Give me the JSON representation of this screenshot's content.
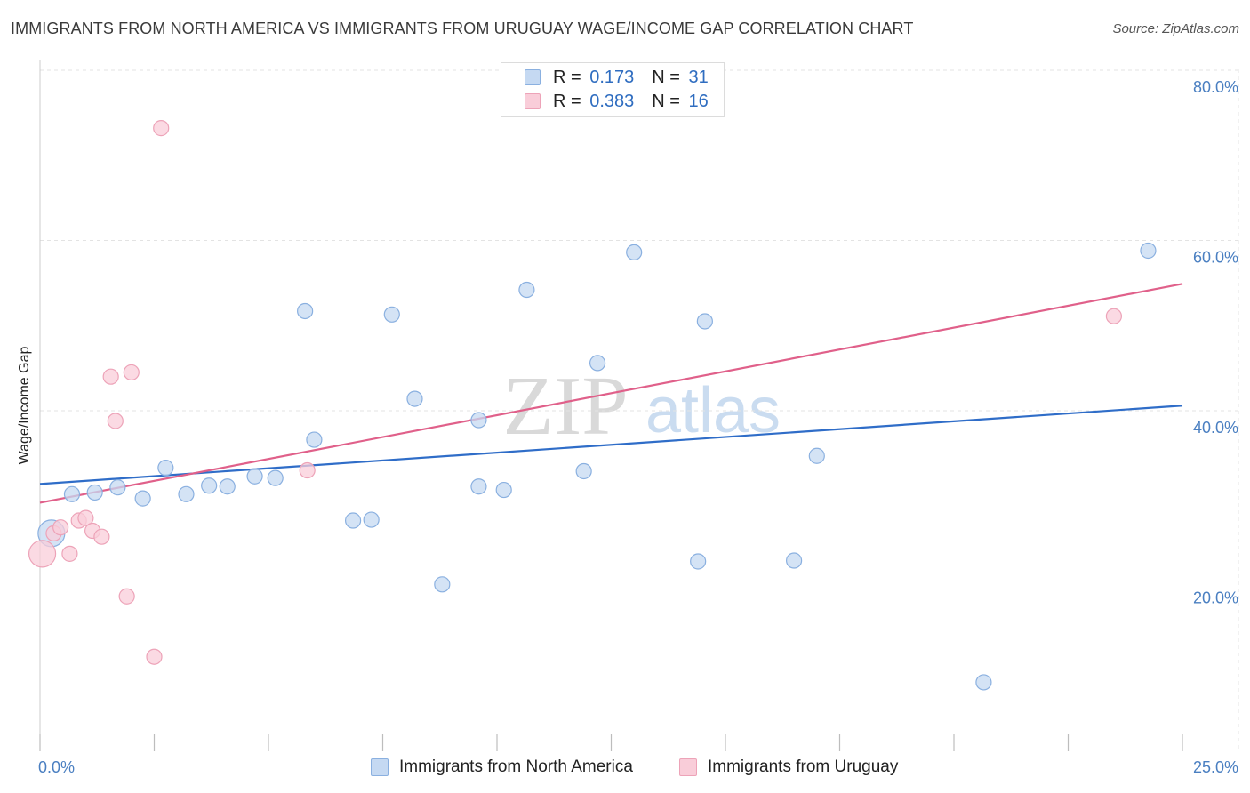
{
  "title": "IMMIGRANTS FROM NORTH AMERICA VS IMMIGRANTS FROM URUGUAY WAGE/INCOME GAP CORRELATION CHART",
  "source": "Source: ZipAtlas.com",
  "watermark": {
    "zip": "ZIP",
    "atlas": "atlas"
  },
  "legend": {
    "r_label": "R =",
    "n_label": "N =",
    "rows": [
      {
        "r": "0.173",
        "n": "31"
      },
      {
        "r": "0.383",
        "n": "16"
      }
    ]
  },
  "bottom_legend": [
    "Immigrants from North America",
    "Immigrants from Uruguay"
  ],
  "colors": {
    "blue_fill": "#c5d9f2",
    "blue_stroke": "#8ab0e0",
    "blue_line": "#2f6dc8",
    "pink_fill": "#f9cdd9",
    "pink_stroke": "#eda3b8",
    "pink_line": "#e0608a",
    "tick_text": "#4a7fc1"
  },
  "chart_data": {
    "type": "scatter",
    "title": "IMMIGRANTS FROM NORTH AMERICA VS IMMIGRANTS FROM URUGUAY WAGE/INCOME GAP CORRELATION CHART",
    "xlabel": "",
    "ylabel": "Wage/Income Gap",
    "xlim": [
      0,
      25
    ],
    "ylim": [
      0,
      80
    ],
    "x_tick_labels": [
      "0.0%",
      "25.0%"
    ],
    "y_ticks": [
      20,
      40,
      60,
      80
    ],
    "y_tick_labels": [
      "20.0%",
      "40.0%",
      "60.0%",
      "80.0%"
    ],
    "grid": true,
    "legend_position": "top-center",
    "series": [
      {
        "name": "Immigrants from North America",
        "color": "#c5d9f2",
        "trend": {
          "x": [
            0,
            25
          ],
          "y": [
            31.4,
            40.6
          ]
        },
        "points": [
          {
            "x": 0.25,
            "y": 25.6,
            "size": "large"
          },
          {
            "x": 0.7,
            "y": 30.2
          },
          {
            "x": 1.2,
            "y": 30.4
          },
          {
            "x": 1.7,
            "y": 31.0
          },
          {
            "x": 2.25,
            "y": 29.7
          },
          {
            "x": 2.75,
            "y": 33.3
          },
          {
            "x": 3.2,
            "y": 30.2
          },
          {
            "x": 3.7,
            "y": 31.2
          },
          {
            "x": 4.1,
            "y": 31.1
          },
          {
            "x": 4.7,
            "y": 32.3
          },
          {
            "x": 5.15,
            "y": 32.1
          },
          {
            "x": 5.8,
            "y": 51.7
          },
          {
            "x": 6.0,
            "y": 36.6
          },
          {
            "x": 6.85,
            "y": 27.1
          },
          {
            "x": 7.25,
            "y": 27.2
          },
          {
            "x": 7.7,
            "y": 51.3
          },
          {
            "x": 8.2,
            "y": 41.4
          },
          {
            "x": 8.8,
            "y": 19.6
          },
          {
            "x": 9.6,
            "y": 38.9
          },
          {
            "x": 9.6,
            "y": 31.1
          },
          {
            "x": 10.15,
            "y": 30.7
          },
          {
            "x": 10.65,
            "y": 54.2
          },
          {
            "x": 11.9,
            "y": 32.9
          },
          {
            "x": 12.2,
            "y": 45.6
          },
          {
            "x": 13.0,
            "y": 58.6
          },
          {
            "x": 14.4,
            "y": 22.3
          },
          {
            "x": 14.55,
            "y": 50.5
          },
          {
            "x": 16.5,
            "y": 22.4
          },
          {
            "x": 17.0,
            "y": 34.7
          },
          {
            "x": 20.65,
            "y": 8.1
          },
          {
            "x": 24.25,
            "y": 58.8
          }
        ]
      },
      {
        "name": "Immigrants from Uruguay",
        "color": "#f9cdd9",
        "trend": {
          "x": [
            0,
            25
          ],
          "y": [
            29.2,
            54.9
          ]
        },
        "points": [
          {
            "x": 0.05,
            "y": 23.2,
            "size": "large"
          },
          {
            "x": 0.3,
            "y": 25.6
          },
          {
            "x": 0.45,
            "y": 26.3
          },
          {
            "x": 0.85,
            "y": 27.1
          },
          {
            "x": 1.0,
            "y": 27.4
          },
          {
            "x": 1.15,
            "y": 25.9
          },
          {
            "x": 0.65,
            "y": 23.2
          },
          {
            "x": 1.35,
            "y": 25.2
          },
          {
            "x": 1.55,
            "y": 44.0
          },
          {
            "x": 1.65,
            "y": 38.8
          },
          {
            "x": 1.9,
            "y": 18.2
          },
          {
            "x": 2.0,
            "y": 44.5
          },
          {
            "x": 2.5,
            "y": 11.1
          },
          {
            "x": 2.65,
            "y": 73.2
          },
          {
            "x": 5.85,
            "y": 33.0
          },
          {
            "x": 23.5,
            "y": 51.1
          }
        ]
      }
    ]
  }
}
